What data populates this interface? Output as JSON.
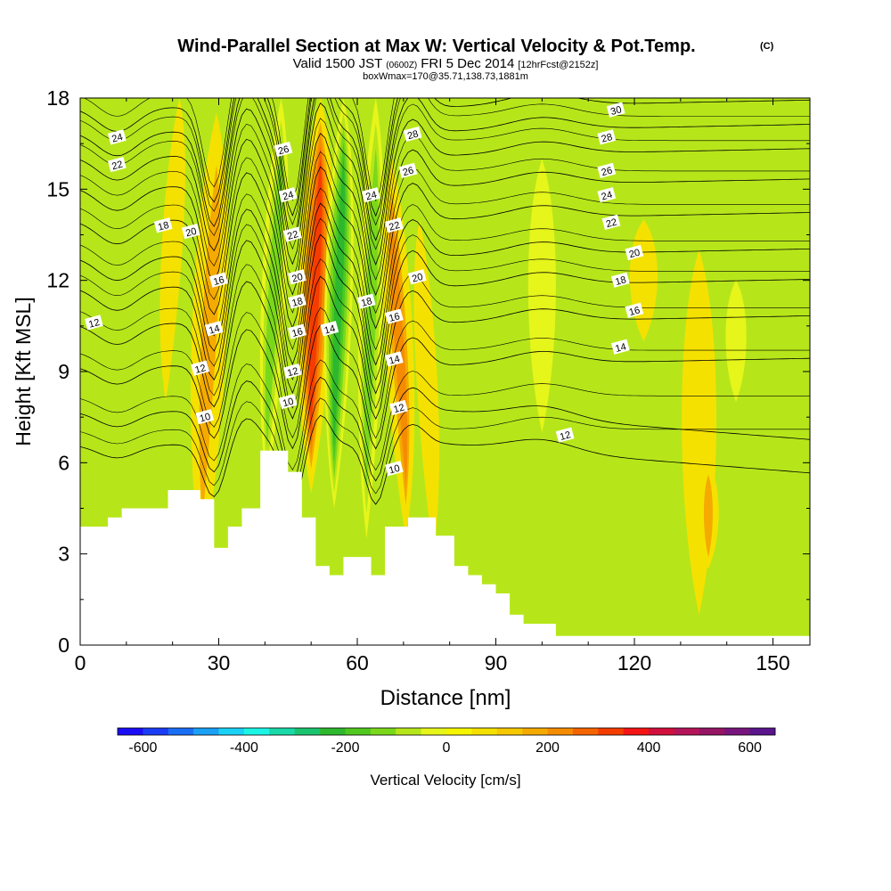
{
  "chart_data": {
    "type": "heatmap",
    "title_main": "Wind-Parallel Section at Max W: Vertical Velocity & Pot.Temp.",
    "title_copyright": "(C)",
    "subtitle_a": "Valid 1500 JST",
    "subtitle_b": "(0600Z)",
    "subtitle_c": "FRI 5 Dec 2014",
    "subtitle_d": "[12hrFcst@2152z]",
    "subtitle_e": "boxWmax=170@35.71,138.73,1881m",
    "xlabel": "Distance [nm]",
    "ylabel": "Height [Kft MSL]",
    "xlim": [
      0,
      158
    ],
    "ylim": [
      0,
      18
    ],
    "xticks": [
      0,
      30,
      60,
      90,
      120,
      150
    ],
    "yticks": [
      0,
      3,
      6,
      9,
      12,
      15,
      18
    ],
    "colorbar": {
      "label": "Vertical Velocity [cm/s]",
      "ticks": [
        -600,
        -400,
        -200,
        0,
        200,
        400,
        600
      ],
      "range": [
        -650,
        650
      ],
      "colors": [
        "#1a0df5",
        "#1a3cf5",
        "#1a6ef5",
        "#1aa0f5",
        "#1ad2f5",
        "#1af5e6",
        "#1ad9a8",
        "#1ac46e",
        "#2db82d",
        "#50c820",
        "#7ad81a",
        "#b6e61a",
        "#e6f51a",
        "#f5f500",
        "#f5e100",
        "#f5c800",
        "#f5aa00",
        "#f58c00",
        "#f56400",
        "#f53c00",
        "#f51414",
        "#d20f3c",
        "#b4145a",
        "#961464",
        "#78147d",
        "#5a148c"
      ]
    },
    "terrain_kft": [
      [
        0,
        3.9
      ],
      [
        6,
        3.9
      ],
      [
        6,
        4.2
      ],
      [
        9,
        4.2
      ],
      [
        9,
        4.5
      ],
      [
        19,
        4.5
      ],
      [
        19,
        5.1
      ],
      [
        26,
        5.1
      ],
      [
        26,
        4.8
      ],
      [
        29,
        4.8
      ],
      [
        29,
        3.2
      ],
      [
        32,
        3.2
      ],
      [
        32,
        3.9
      ],
      [
        35,
        3.9
      ],
      [
        35,
        4.5
      ],
      [
        39,
        4.5
      ],
      [
        39,
        6.4
      ],
      [
        45,
        6.4
      ],
      [
        45,
        5.7
      ],
      [
        48,
        5.7
      ],
      [
        48,
        4.2
      ],
      [
        51,
        4.2
      ],
      [
        51,
        2.6
      ],
      [
        54,
        2.6
      ],
      [
        54,
        2.3
      ],
      [
        57,
        2.3
      ],
      [
        57,
        2.9
      ],
      [
        63,
        2.9
      ],
      [
        63,
        2.3
      ],
      [
        66,
        2.3
      ],
      [
        66,
        3.9
      ],
      [
        71,
        3.9
      ],
      [
        71,
        4.2
      ],
      [
        77,
        4.2
      ],
      [
        77,
        3.6
      ],
      [
        81,
        3.6
      ],
      [
        81,
        2.6
      ],
      [
        84,
        2.6
      ],
      [
        84,
        2.3
      ],
      [
        87,
        2.3
      ],
      [
        87,
        2.0
      ],
      [
        90,
        2.0
      ],
      [
        90,
        1.7
      ],
      [
        93,
        1.7
      ],
      [
        93,
        1.0
      ],
      [
        96,
        1.0
      ],
      [
        96,
        0.7
      ],
      [
        103,
        0.7
      ],
      [
        103,
        0.3
      ],
      [
        158,
        0.3
      ]
    ],
    "w_cells": [
      {
        "x": 28,
        "halfwidth": 5,
        "top": 17.5,
        "bottom": 2.5,
        "value": 160,
        "tilt": 3
      },
      {
        "x": 42,
        "halfwidth": 3.5,
        "top": 18,
        "bottom": 5,
        "value": -170,
        "tilt": 3
      },
      {
        "x": 51,
        "halfwidth": 5,
        "top": 18,
        "bottom": 5,
        "value": 300,
        "tilt": 2
      },
      {
        "x": 56,
        "halfwidth": 4,
        "top": 18,
        "bottom": 4.5,
        "value": -240,
        "tilt": 2
      },
      {
        "x": 63,
        "halfwidth": 3.5,
        "top": 18,
        "bottom": 3.5,
        "value": -170,
        "tilt": 2
      },
      {
        "x": 69,
        "halfwidth": 4,
        "top": 16,
        "bottom": 3.5,
        "value": 180,
        "tilt": -3
      },
      {
        "x": 75,
        "halfwidth": 3,
        "top": 14,
        "bottom": 3,
        "value": 80,
        "tilt": -3
      },
      {
        "x": 20,
        "halfwidth": 3,
        "top": 18,
        "bottom": 8,
        "value": 70,
        "tilt": 3
      },
      {
        "x": 100,
        "halfwidth": 4,
        "top": 16,
        "bottom": 7,
        "value": -40,
        "tilt": 0
      },
      {
        "x": 122,
        "halfwidth": 4,
        "top": 14,
        "bottom": 10,
        "value": 40,
        "tilt": 0
      },
      {
        "x": 134,
        "halfwidth": 5,
        "top": 13,
        "bottom": 1,
        "value": 60,
        "tilt": 0
      },
      {
        "x": 136,
        "halfwidth": 3,
        "top": 6,
        "bottom": 2.5,
        "value": 160,
        "tilt": 0
      },
      {
        "x": 142,
        "halfwidth": 3,
        "top": 12,
        "bottom": 8,
        "value": -30,
        "tilt": 0
      }
    ],
    "theta_contours": [
      {
        "level": 10,
        "base": 6.6
      },
      {
        "level": 12,
        "base": 7.7
      },
      {
        "level": 14,
        "base": 9.2
      },
      {
        "level": 16,
        "base": 10.6
      },
      {
        "level": 18,
        "base": 11.8
      },
      {
        "level": 20,
        "base": 12.8
      },
      {
        "level": 22,
        "base": 14.0
      },
      {
        "level": 24,
        "base": 15.1
      },
      {
        "level": 26,
        "base": 16.1
      },
      {
        "level": 28,
        "base": 16.9
      },
      {
        "level": 30,
        "base": 17.7
      }
    ],
    "contour_labels": [
      {
        "text": "24",
        "x": 8,
        "y": 16.7
      },
      {
        "text": "22",
        "x": 8,
        "y": 15.8
      },
      {
        "text": "12",
        "x": 3,
        "y": 10.6
      },
      {
        "text": "18",
        "x": 18,
        "y": 13.8
      },
      {
        "text": "20",
        "x": 24,
        "y": 13.6
      },
      {
        "text": "16",
        "x": 30,
        "y": 12.0
      },
      {
        "text": "14",
        "x": 29,
        "y": 10.4
      },
      {
        "text": "12",
        "x": 26,
        "y": 9.1
      },
      {
        "text": "10",
        "x": 27,
        "y": 7.5
      },
      {
        "text": "26",
        "x": 44,
        "y": 16.3
      },
      {
        "text": "24",
        "x": 45,
        "y": 14.8
      },
      {
        "text": "22",
        "x": 46,
        "y": 13.5
      },
      {
        "text": "20",
        "x": 47,
        "y": 12.1
      },
      {
        "text": "18",
        "x": 47,
        "y": 11.3
      },
      {
        "text": "16",
        "x": 47,
        "y": 10.3
      },
      {
        "text": "12",
        "x": 46,
        "y": 9.0
      },
      {
        "text": "10",
        "x": 45,
        "y": 8.0
      },
      {
        "text": "14",
        "x": 54,
        "y": 10.4
      },
      {
        "text": "18",
        "x": 62,
        "y": 11.3
      },
      {
        "text": "24",
        "x": 63,
        "y": 14.8
      },
      {
        "text": "16",
        "x": 68,
        "y": 10.8
      },
      {
        "text": "14",
        "x": 68,
        "y": 9.4
      },
      {
        "text": "12",
        "x": 69,
        "y": 7.8
      },
      {
        "text": "10",
        "x": 68,
        "y": 5.8
      },
      {
        "text": "28",
        "x": 72,
        "y": 16.8
      },
      {
        "text": "26",
        "x": 71,
        "y": 15.6
      },
      {
        "text": "22",
        "x": 68,
        "y": 13.8
      },
      {
        "text": "20",
        "x": 73,
        "y": 12.1
      },
      {
        "text": "30",
        "x": 116,
        "y": 17.6
      },
      {
        "text": "28",
        "x": 114,
        "y": 16.7
      },
      {
        "text": "26",
        "x": 114,
        "y": 15.6
      },
      {
        "text": "24",
        "x": 114,
        "y": 14.8
      },
      {
        "text": "22",
        "x": 115,
        "y": 13.9
      },
      {
        "text": "20",
        "x": 120,
        "y": 12.9
      },
      {
        "text": "18",
        "x": 117,
        "y": 12.0
      },
      {
        "text": "16",
        "x": 120,
        "y": 11.0
      },
      {
        "text": "14",
        "x": 117,
        "y": 9.8
      },
      {
        "text": "12",
        "x": 105,
        "y": 6.9
      }
    ]
  }
}
